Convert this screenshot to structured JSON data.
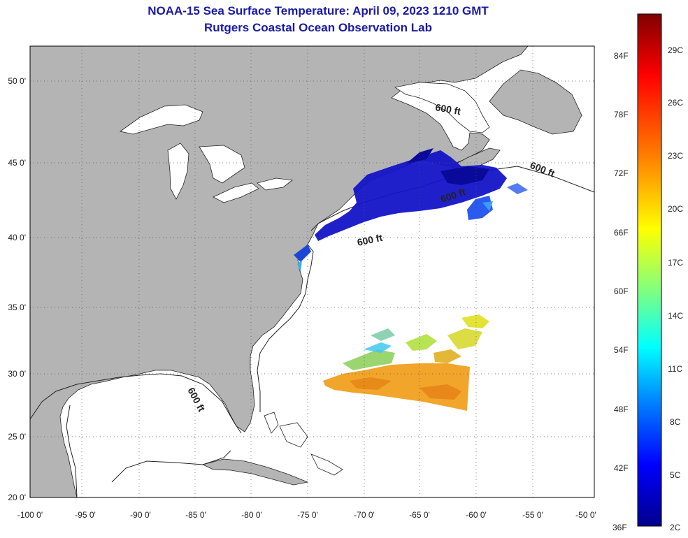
{
  "title": {
    "line1": "NOAA-15 Sea Surface Temperature:  April 09, 2023 1210 GMT",
    "line2": "Rutgers Coastal Ocean Observation Lab"
  },
  "map": {
    "lon_range": [
      -100,
      -50
    ],
    "lat_range": [
      20,
      52.5
    ],
    "lat_ticks": [
      "50 0'",
      "45 0'",
      "40 0'",
      "35 0'",
      "30 0'",
      "25 0'",
      "20 0'"
    ],
    "lon_ticks": [
      "-100 0'",
      "-95 0'",
      "-90 0'",
      "-85 0'",
      "-80 0'",
      "-75 0'",
      "-70 0'",
      "-65 0'",
      "-60 0'",
      "-55 0'",
      "-50 0'"
    ],
    "contour_labels": [
      "600 ft",
      "600 ft",
      "600 ft",
      "600 ft",
      "600 ft"
    ],
    "grid": "dotted",
    "colors": {
      "land": "#b4b4b4",
      "ocean": "#ffffff",
      "cold_water": "#1414c8",
      "warm_water": "#f0a020"
    }
  },
  "colorbar": {
    "fahrenheit_labels": [
      "84F",
      "78F",
      "72F",
      "66F",
      "60F",
      "54F",
      "48F",
      "42F",
      "36F"
    ],
    "celsius_labels": [
      "29C",
      "26C",
      "23C",
      "20C",
      "17C",
      "14C",
      "11C",
      "8C",
      "5C",
      "2C"
    ],
    "stops": [
      "#800000",
      "#ff0000",
      "#ff8000",
      "#ffff00",
      "#80ff80",
      "#00ffff",
      "#0080ff",
      "#0000ff",
      "#00008c"
    ]
  }
}
